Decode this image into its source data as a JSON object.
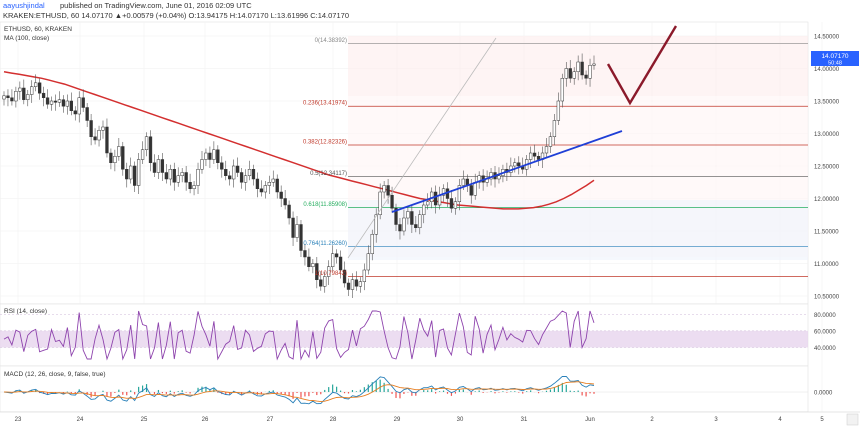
{
  "header": {
    "author": "aayushjindal",
    "published": "published on TradingView.com, June 01, 2016 02:09 UTC",
    "ohlc": "KRAKEN:ETHUSD, 60  14.07170  ▲+0.00579 (+0.04%)  O:13.94175  H:14.07170  L:13.61996  C:14.07170"
  },
  "chart_data": {
    "type": "candlestick",
    "symbol_label": "ETHUSD, 60, KRAKEN",
    "ma_label": "MA (100, close)",
    "x_ticks": [
      "23",
      "24",
      "25",
      "26",
      "27",
      "28",
      "29",
      "30",
      "31",
      "Jun",
      "2",
      "3",
      "4",
      "5"
    ],
    "price_axis": {
      "ticks": [
        "14.50000",
        "14.00000",
        "13.50000",
        "13.00000",
        "12.50000",
        "12.00000",
        "11.50000",
        "11.00000",
        "10.50000"
      ],
      "ylim": [
        10.2,
        14.6
      ]
    },
    "last_price": "14.07170",
    "last_price_sub": "50:48",
    "fib_levels": [
      {
        "label": "0(14.38392)",
        "value": 14.38392,
        "color": "#888888"
      },
      {
        "label": "0.236(13.41974)",
        "value": 13.41974,
        "color": "#c0392b"
      },
      {
        "label": "0.382(12.82326)",
        "value": 12.82326,
        "color": "#c0392b"
      },
      {
        "label": "0.5(12.34117)",
        "value": 12.34117,
        "color": "#555555"
      },
      {
        "label": "0.618(11.85908)",
        "value": 11.85908,
        "color": "#27ae60"
      },
      {
        "label": "0.764(11.26260)",
        "value": 11.2626,
        "color": "#2980b9"
      },
      {
        "label": "1(10.79842)",
        "value": 10.79842,
        "color": "#c0392b"
      }
    ],
    "candle_close": [
      13.58,
      13.55,
      13.5,
      13.65,
      13.7,
      13.52,
      13.6,
      13.72,
      13.78,
      13.62,
      13.55,
      13.45,
      13.5,
      13.48,
      13.52,
      13.42,
      13.5,
      13.35,
      13.3,
      13.55,
      13.4,
      13.2,
      12.95,
      12.9,
      13.05,
      13.1,
      12.7,
      12.55,
      12.65,
      12.8,
      12.45,
      12.3,
      12.5,
      12.2,
      12.6,
      12.75,
      12.95,
      12.55,
      12.4,
      12.6,
      12.4,
      12.3,
      12.45,
      12.25,
      12.35,
      12.4,
      12.25,
      12.15,
      12.2,
      12.45,
      12.6,
      12.7,
      12.6,
      12.75,
      12.55,
      12.45,
      12.35,
      12.3,
      12.5,
      12.4,
      12.25,
      12.35,
      12.45,
      12.3,
      12.15,
      12.1,
      12.2,
      12.25,
      12.3,
      12.1,
      12.0,
      11.9,
      11.7,
      11.4,
      11.6,
      11.2,
      11.1,
      10.95,
      11.0,
      10.75,
      10.65,
      10.8,
      10.95,
      11.15,
      11.1,
      10.9,
      10.7,
      10.6,
      10.75,
      10.65,
      10.72,
      10.9,
      11.15,
      11.45,
      11.75,
      12.1,
      12.2,
      12.05,
      11.85,
      11.6,
      11.5,
      11.7,
      11.8,
      11.6,
      11.55,
      11.75,
      11.9,
      11.95,
      12.1,
      11.9,
      12.05,
      12.15,
      12.0,
      11.85,
      11.95,
      12.2,
      12.3,
      12.2,
      12.05,
      12.25,
      12.35,
      12.25,
      12.3,
      12.4,
      12.3,
      12.35,
      12.45,
      12.4,
      12.5,
      12.55,
      12.5,
      12.45,
      12.6,
      12.7,
      12.65,
      12.6,
      12.7,
      12.8,
      12.95,
      13.2,
      13.5,
      13.85,
      14.0,
      13.85,
      13.95,
      14.1,
      13.9,
      13.85,
      14.05,
      14.07
    ],
    "ma_values": [
      13.95,
      13.93,
      13.91,
      13.89,
      13.87,
      13.85,
      13.82,
      13.79,
      13.76,
      13.72,
      13.68,
      13.64,
      13.6,
      13.56,
      13.52,
      13.48,
      13.44,
      13.4,
      13.36,
      13.32,
      13.28,
      13.24,
      13.2,
      13.16,
      13.12,
      13.08,
      13.04,
      13.0,
      12.96,
      12.92,
      12.88,
      12.84,
      12.8,
      12.76,
      12.72,
      12.68,
      12.64,
      12.6,
      12.56,
      12.52,
      12.48,
      12.44,
      12.4,
      12.36,
      12.33,
      12.3,
      12.27,
      12.24,
      12.21,
      12.18,
      12.15,
      12.12,
      12.09,
      12.06,
      12.03,
      12.0,
      11.98,
      11.96,
      11.94,
      11.92,
      11.9,
      11.89,
      11.88,
      11.87,
      11.86,
      11.85,
      11.84,
      11.84,
      11.84,
      11.85,
      11.86,
      11.88,
      11.91,
      11.95,
      12.0,
      12.06,
      12.13,
      12.2,
      12.28
    ],
    "rsi": {
      "label": "RSI (14, close)",
      "ticks": [
        "80.0000",
        "60.0000",
        "40.0000"
      ],
      "ylim": [
        20,
        90
      ],
      "band": [
        40,
        60
      ]
    },
    "macd": {
      "label": "MACD (12, 26, close, 9, false, true)",
      "ticks": [
        "0.0000"
      ]
    }
  }
}
